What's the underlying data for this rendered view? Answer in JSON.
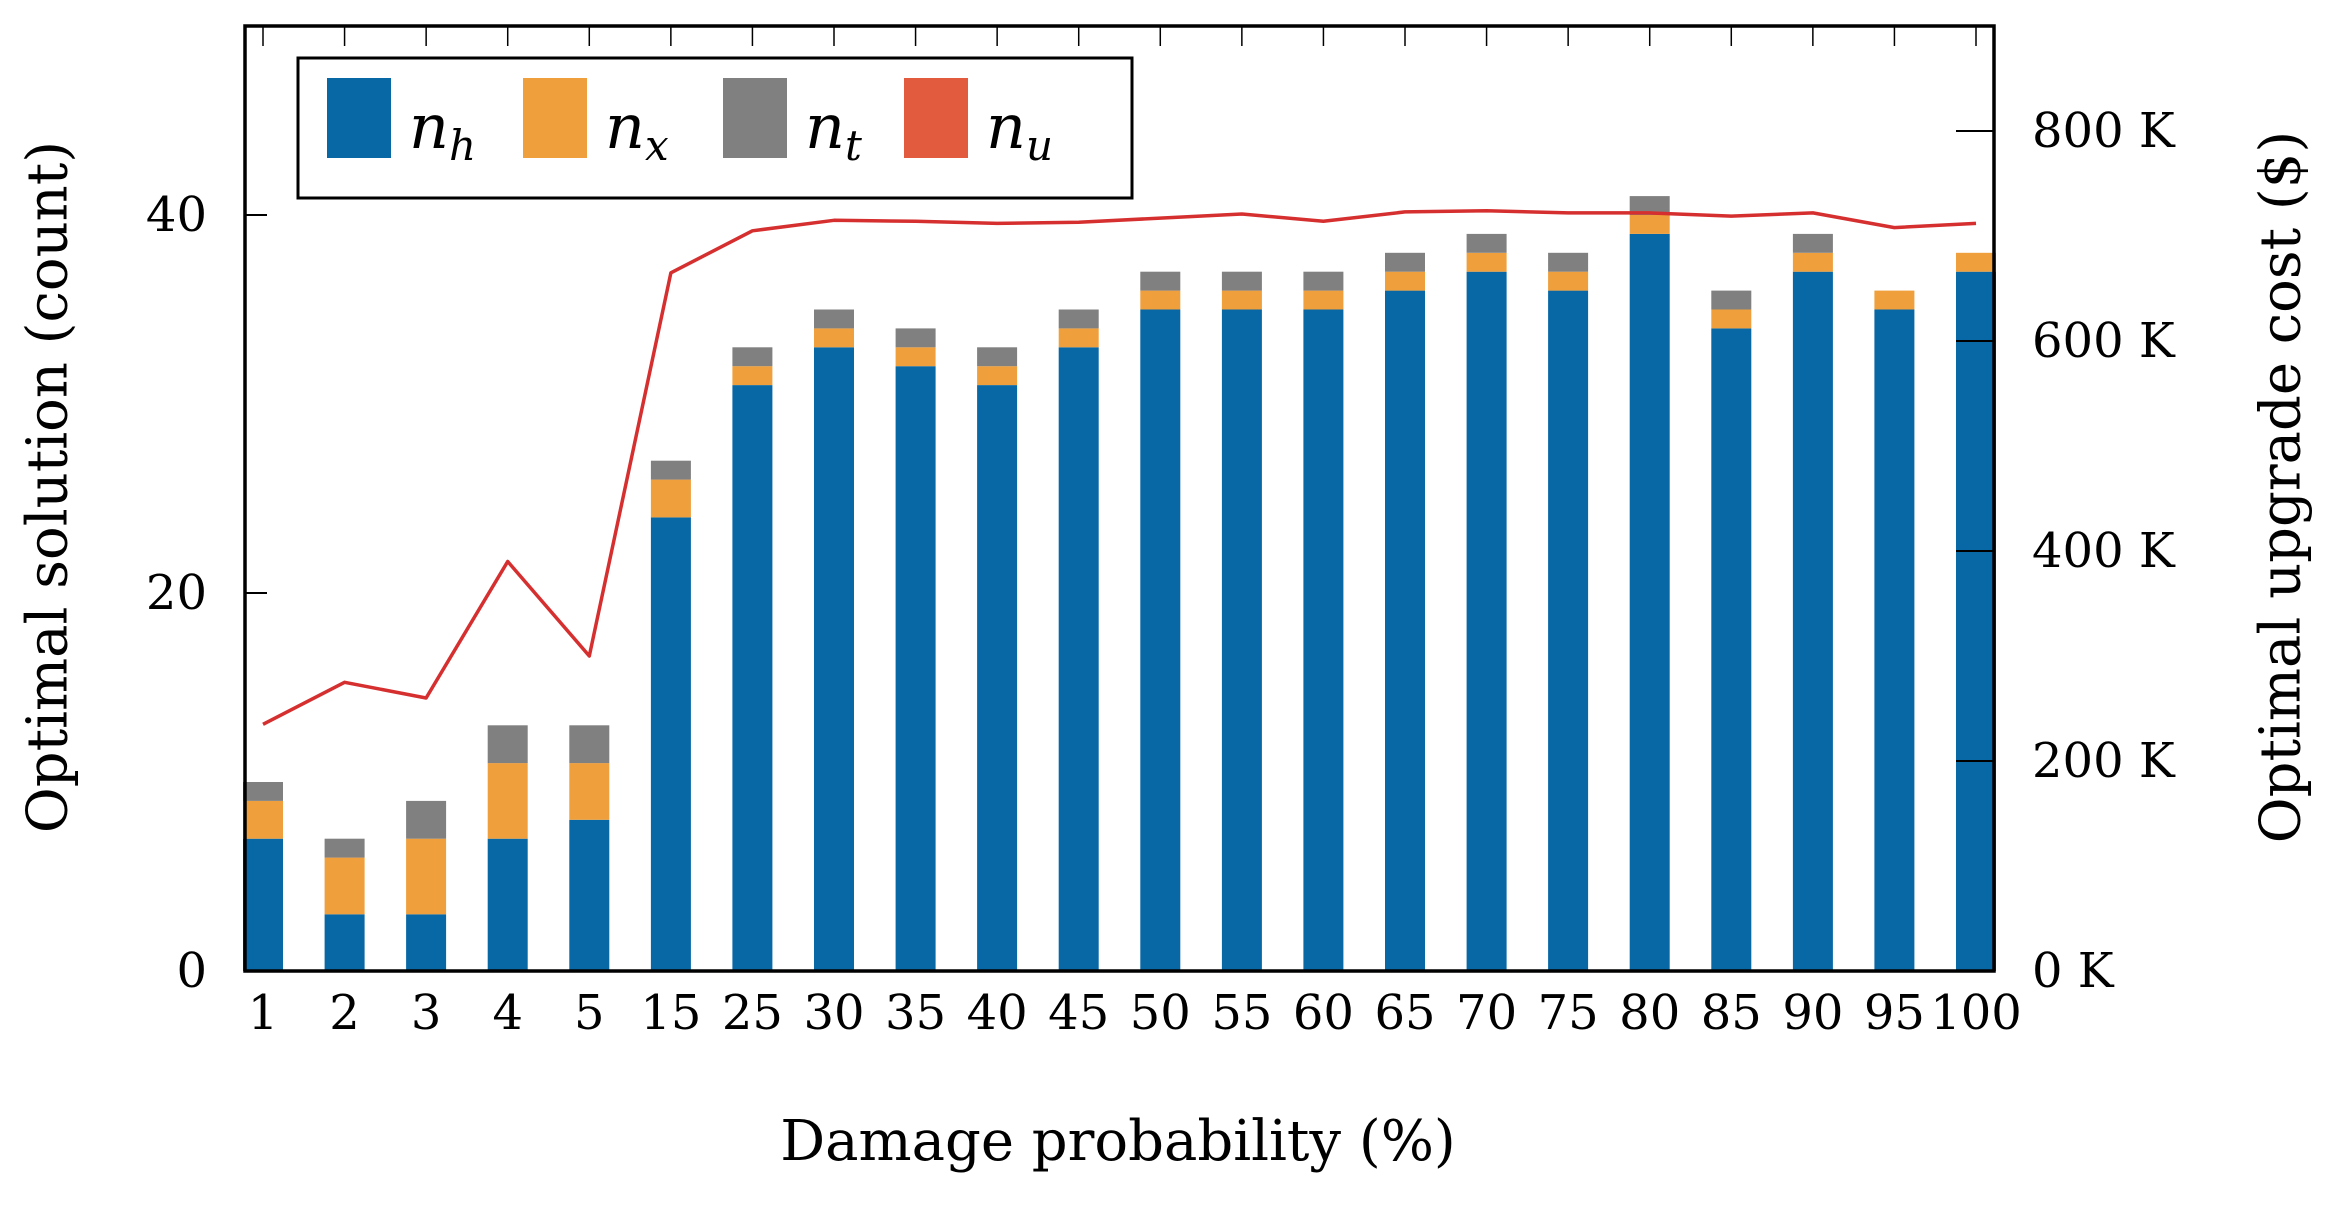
{
  "chart_data": {
    "type": "bar",
    "stacked": true,
    "title": "",
    "xlabel": "Damage probability (%)",
    "ylabel": "Optimal solution (count)",
    "y2label": "Optimal upgrade cost ($)",
    "ylim": [
      0,
      50
    ],
    "y2lim": [
      0,
      900000
    ],
    "yticks": [
      "0",
      "20",
      "40"
    ],
    "yticks_values": [
      0,
      20,
      40
    ],
    "y2ticks": [
      "0 K",
      "200 K",
      "400 K",
      "600 K",
      "800 K"
    ],
    "y2ticks_values": [
      0,
      200000,
      400000,
      600000,
      800000
    ],
    "categories": [
      "1",
      "2",
      "3",
      "4",
      "5",
      "15",
      "25",
      "30",
      "35",
      "40",
      "45",
      "50",
      "55",
      "60",
      "65",
      "70",
      "75",
      "80",
      "85",
      "90",
      "95",
      "100"
    ],
    "series": [
      {
        "name": "n_h",
        "symbol": "n",
        "sub": "h",
        "color": "#0868a6",
        "values": [
          7,
          3,
          3,
          7,
          8,
          24,
          31,
          33,
          32,
          31,
          33,
          35,
          35,
          35,
          36,
          37,
          36,
          39,
          34,
          37,
          35,
          37
        ]
      },
      {
        "name": "n_x",
        "symbol": "n",
        "sub": "x",
        "color": "#ef9f3b",
        "values": [
          2,
          3,
          4,
          4,
          3,
          2,
          1,
          1,
          1,
          1,
          1,
          1,
          1,
          1,
          1,
          1,
          1,
          1,
          1,
          1,
          1,
          1
        ]
      },
      {
        "name": "n_t",
        "symbol": "n",
        "sub": "t",
        "color": "#808080",
        "values": [
          1,
          1,
          2,
          2,
          2,
          1,
          1,
          1,
          1,
          1,
          1,
          1,
          1,
          1,
          1,
          1,
          1,
          1,
          1,
          1,
          0,
          0
        ]
      },
      {
        "name": "n_u",
        "symbol": "n",
        "sub": "u",
        "color": "#e35b3e",
        "values": [
          0,
          0,
          0,
          0,
          0,
          0,
          0,
          0,
          0,
          0,
          0,
          0,
          0,
          0,
          0,
          0,
          0,
          0,
          0,
          0,
          0,
          0
        ]
      }
    ],
    "line_series": {
      "name": "Optimal upgrade cost",
      "axis": "right",
      "color": "#d62f2f",
      "values": [
        235000,
        275000,
        260000,
        390000,
        300000,
        665000,
        705000,
        715000,
        714000,
        712000,
        713000,
        717000,
        721000,
        714000,
        723000,
        724000,
        722000,
        722000,
        719000,
        722000,
        708000,
        712000
      ]
    },
    "legend": {
      "position": "top-left",
      "columns": 4
    }
  }
}
